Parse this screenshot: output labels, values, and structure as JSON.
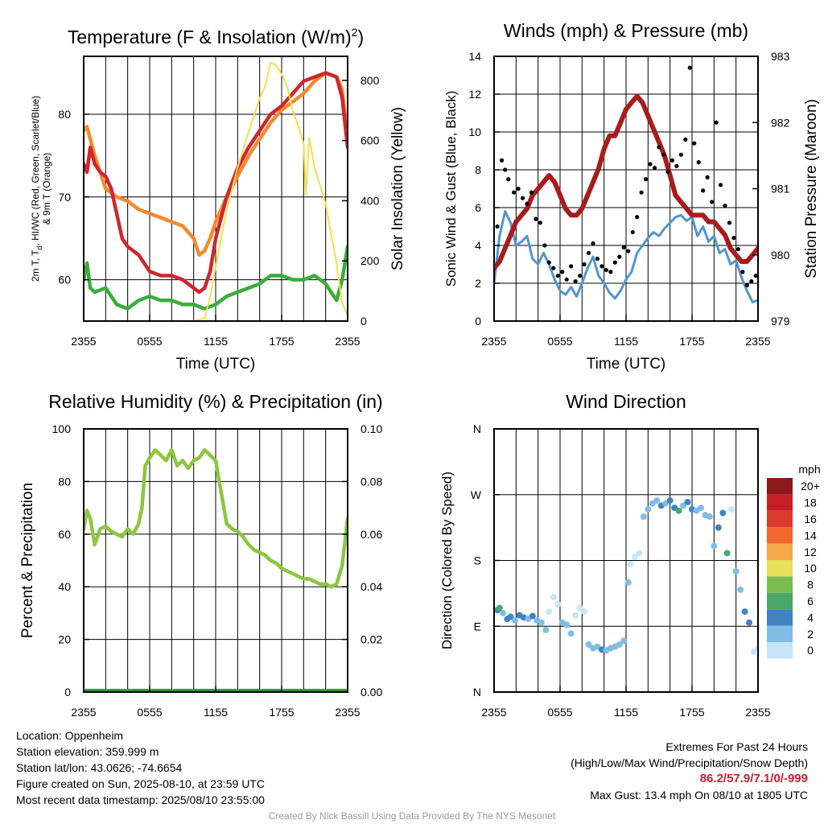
{
  "chart_data": [
    {
      "type": "line",
      "title": "Temperature (F) & Insolation (W/m²)",
      "xlabel": "Time (UTC)",
      "ylabel": "2m T, Td, HI/WC (Red, Green, Scarlet/Blue) & 9m T (Orange)",
      "ylabel_line1": "2m T, T",
      "ylabel_sub": "d",
      "ylabel_line1_rest": ", HI/WC (Red, Green, Scarlet/Blue)",
      "ylabel_line2": "& 9m T (Orange)",
      "y2label": "Solar Insolation (Yellow)",
      "x_ticks": [
        "2355",
        "0555",
        "1155",
        "1755",
        "2355"
      ],
      "x_hours": [
        0,
        6,
        12,
        18,
        24
      ],
      "ylim": [
        55,
        87
      ],
      "y_ticks": [
        60,
        70,
        80
      ],
      "y2lim": [
        0,
        880
      ],
      "y2_ticks": [
        0,
        200,
        400,
        600,
        800
      ],
      "grid": true,
      "series": [
        {
          "color": "#f28a2e",
          "x": [
            0,
            0.3,
            0.6,
            1,
            1.5,
            2,
            3,
            4,
            5,
            6,
            7,
            8,
            9,
            10,
            10.5,
            11,
            11.5,
            12,
            13,
            14,
            15,
            16,
            17,
            18,
            19,
            20,
            21,
            22,
            23,
            23.5,
            24
          ],
          "y": [
            78,
            78.5,
            77,
            75,
            73,
            71,
            70,
            69.5,
            68.5,
            68,
            67.5,
            67,
            66.5,
            65,
            63,
            63.5,
            65,
            67,
            70,
            72.5,
            75,
            77,
            79,
            80.5,
            81.5,
            82.5,
            84,
            85,
            84.5,
            83,
            77
          ]
        },
        {
          "color": "#d0262e",
          "x": [
            0,
            0.3,
            0.6,
            1,
            1.5,
            2,
            2.5,
            3,
            3.5,
            4,
            5,
            6,
            7,
            8,
            9,
            10,
            10.5,
            11,
            11.5,
            12,
            13,
            14,
            15,
            16,
            17,
            18,
            19,
            20,
            21,
            22,
            23,
            23.5,
            24
          ],
          "y": [
            74,
            73,
            76,
            74,
            73,
            72.5,
            71,
            68,
            65,
            64,
            63,
            61,
            60.5,
            60.5,
            60,
            59,
            58.5,
            59,
            61,
            65,
            70,
            73.5,
            76,
            78,
            80,
            81,
            82.5,
            84,
            84.5,
            85,
            84.5,
            82,
            76
          ]
        },
        {
          "color": "#3aad3a",
          "x": [
            0,
            0.3,
            0.6,
            1,
            2,
            3,
            4,
            5,
            6,
            7,
            8,
            9,
            10,
            11,
            12,
            13,
            14,
            15,
            16,
            17,
            18,
            19,
            20,
            21,
            22,
            23,
            23.5,
            24
          ],
          "y": [
            60,
            62,
            59,
            58.5,
            59,
            57,
            56.5,
            57.5,
            58,
            57.5,
            57.5,
            57,
            57,
            56.5,
            57,
            58,
            58.5,
            59,
            59.5,
            60.5,
            60.5,
            60,
            60,
            60.5,
            59.5,
            57.5,
            60,
            64
          ]
        },
        {
          "color": "#f2e050",
          "axis": "y2",
          "x": [
            0,
            1,
            2,
            3,
            4,
            5,
            6,
            7,
            8,
            9,
            10,
            11,
            11.5,
            12,
            13,
            14,
            15,
            16,
            16.5,
            17,
            17.5,
            18,
            18.5,
            19,
            19.5,
            20,
            20.2,
            20.5,
            21,
            22,
            23,
            23.5,
            24
          ],
          "y": [
            0,
            0,
            0,
            0,
            0,
            0,
            0,
            0,
            0,
            0,
            1,
            10,
            80,
            180,
            370,
            510,
            630,
            740,
            780,
            860,
            850,
            820,
            780,
            700,
            650,
            590,
            420,
            610,
            510,
            390,
            190,
            60,
            20
          ]
        }
      ]
    },
    {
      "type": "line",
      "title": "Winds (mph) & Pressure (mb)",
      "xlabel": "Time (UTC)",
      "ylabel": "Sonic Wind & Gust (Blue, Black)",
      "y2label": "Station Pressure (Maroon)",
      "x_ticks": [
        "2355",
        "0555",
        "1155",
        "1755",
        "2355"
      ],
      "x_hours": [
        0,
        6,
        12,
        18,
        24
      ],
      "ylim": [
        0,
        14
      ],
      "y_ticks": [
        0,
        2,
        4,
        6,
        8,
        10,
        12,
        14
      ],
      "y2lim": [
        979,
        983
      ],
      "y2_ticks": [
        979,
        980,
        981,
        982,
        983
      ],
      "grid": true,
      "series": [
        {
          "color": "#4f96d3",
          "x": [
            0,
            0.5,
            1,
            1.5,
            2,
            2.5,
            3,
            3.5,
            4,
            4.5,
            5,
            5.5,
            6,
            6.5,
            7,
            7.5,
            8,
            8.5,
            9,
            9.5,
            10,
            10.5,
            11,
            11.5,
            12,
            12.5,
            13,
            13.5,
            14,
            14.5,
            15,
            15.5,
            16,
            16.5,
            17,
            17.5,
            18,
            18.5,
            19,
            19.5,
            20,
            20.5,
            21,
            21.5,
            22,
            22.5,
            23,
            23.5,
            24
          ],
          "y": [
            2,
            4.5,
            5.8,
            5.2,
            4,
            4.2,
            4.5,
            3.3,
            3,
            3.6,
            3,
            2.2,
            1.6,
            1.4,
            1.8,
            1.3,
            2,
            2.8,
            3.4,
            2.4,
            2,
            1.5,
            1.2,
            1.6,
            2.2,
            2.6,
            3.6,
            4,
            4.4,
            4.7,
            4.5,
            4.9,
            5.2,
            5.5,
            5.6,
            5.3,
            5.5,
            4.5,
            5,
            4.2,
            4.5,
            3.6,
            3.8,
            3,
            3.2,
            2.3,
            1.6,
            1,
            1.1
          ]
        },
        {
          "color": "#a81c1c",
          "axis": "y2",
          "x": [
            0,
            0.5,
            1,
            1.5,
            2,
            2.5,
            3,
            3.5,
            4,
            4.5,
            5,
            5.5,
            6,
            6.5,
            7,
            7.5,
            8,
            8.5,
            9,
            9.5,
            10,
            10.5,
            11,
            11.5,
            12,
            12.5,
            13,
            13.5,
            14,
            14.5,
            15,
            15.5,
            16,
            16.5,
            17,
            17.5,
            18,
            18.5,
            19,
            19.5,
            20,
            20.5,
            21,
            21.5,
            22,
            22.5,
            23,
            23.5,
            24
          ],
          "y": [
            979.8,
            979.9,
            980.1,
            980.3,
            980.5,
            980.6,
            980.7,
            980.9,
            981,
            981.1,
            981.2,
            981.1,
            980.9,
            980.7,
            980.6,
            980.6,
            980.7,
            980.9,
            981.1,
            981.3,
            981.6,
            981.8,
            981.8,
            982,
            982.2,
            982.3,
            982.4,
            982.3,
            982.1,
            981.9,
            981.7,
            981.5,
            981.2,
            980.9,
            980.8,
            980.7,
            980.6,
            980.6,
            980.6,
            980.5,
            980.5,
            980.4,
            980.3,
            980.1,
            980,
            979.9,
            979.9,
            980,
            980.1
          ]
        },
        {
          "color": "#000000",
          "type": "scatter",
          "x": [
            0.3,
            0.7,
            1,
            1.3,
            1.8,
            2.2,
            2.6,
            3,
            3.4,
            3.8,
            4.2,
            4.6,
            5,
            5.4,
            5.8,
            6.2,
            6.6,
            7,
            7.4,
            7.8,
            8.2,
            8.6,
            9,
            9.4,
            9.8,
            10.2,
            10.6,
            11,
            11.4,
            11.8,
            12.2,
            12.6,
            13,
            13.4,
            13.8,
            14.2,
            14.6,
            15,
            15.4,
            15.8,
            16.2,
            16.6,
            17,
            17.4,
            17.8,
            18.2,
            18.6,
            19,
            19.4,
            19.8,
            20.2,
            20.6,
            21,
            21.4,
            21.8,
            22.2,
            22.6,
            23,
            23.4,
            23.8
          ],
          "y": [
            5,
            8.5,
            8,
            7.5,
            6.8,
            7,
            6.5,
            6.2,
            6.8,
            5.4,
            5.2,
            4,
            3.1,
            2.8,
            2.4,
            2.6,
            2.2,
            2.9,
            2.1,
            2.4,
            3,
            3.6,
            4.1,
            3.3,
            2.9,
            2.7,
            2.6,
            3.1,
            3.4,
            3.9,
            3.7,
            4.7,
            5.5,
            6.8,
            7.5,
            8.3,
            8.1,
            9.2,
            8.8,
            7.9,
            8.5,
            8.2,
            8.8,
            9.6,
            13.4,
            9.4,
            8.4,
            6.9,
            7.6,
            6.3,
            10.5,
            7.2,
            6.1,
            5.2,
            4.4,
            3.8,
            2.6,
            1.9,
            2.1,
            2.4
          ]
        }
      ]
    },
    {
      "type": "line",
      "title": "Relative Humidity (%) & Precipitation (in)",
      "ylabel": "Percent & Precipitation",
      "x_ticks": [
        "2355",
        "0555",
        "1155",
        "1755",
        "2355"
      ],
      "x_hours": [
        0,
        6,
        12,
        18,
        24
      ],
      "ylim": [
        0,
        100
      ],
      "y_ticks": [
        0,
        20,
        40,
        60,
        80,
        100
      ],
      "y2lim": [
        0,
        0.1
      ],
      "y2_ticks": [
        "0.00",
        "0.02",
        "0.04",
        "0.06",
        "0.08",
        "0.10"
      ],
      "grid": true,
      "series": [
        {
          "color": "#8cc63f",
          "x": [
            0,
            0.3,
            0.6,
            1,
            1.5,
            2,
            2.5,
            3,
            3.5,
            4,
            4.5,
            5,
            5.3,
            5.6,
            6,
            6.5,
            7,
            7.5,
            8,
            8.5,
            9,
            9.5,
            10,
            10.5,
            11,
            11.5,
            12,
            12.5,
            13,
            13.5,
            14,
            14.5,
            15,
            15.5,
            16,
            16.5,
            17,
            17.5,
            18,
            18.5,
            19,
            19.5,
            20,
            20.5,
            21,
            21.5,
            22,
            22.5,
            23,
            23.5,
            24
          ],
          "y": [
            62,
            69,
            66,
            56,
            62,
            63,
            61,
            60,
            59,
            62,
            60,
            64,
            70,
            86,
            89,
            92,
            90,
            88,
            92,
            86,
            88,
            85,
            88,
            89,
            92,
            90,
            88,
            76,
            64,
            62,
            61,
            59,
            56,
            54,
            53,
            52,
            50,
            49,
            47,
            46,
            45,
            44,
            43,
            43,
            42,
            41,
            41,
            40,
            41,
            48,
            66
          ]
        },
        {
          "color": "#2f9e3f",
          "x": [
            0,
            24
          ],
          "y": [
            0,
            0
          ]
        }
      ]
    },
    {
      "type": "scatter",
      "title": "Wind Direction",
      "ylabel": "Direction (Colored By Speed)",
      "x_ticks": [
        "2355",
        "0555",
        "1155",
        "1755",
        "2355"
      ],
      "x_hours": [
        0,
        6,
        12,
        18,
        24
      ],
      "ylim": [
        0,
        360
      ],
      "y_ticks": [
        "N",
        "E",
        "S",
        "W",
        "N"
      ],
      "y_tick_values": [
        0,
        90,
        180,
        270,
        360
      ],
      "grid": true,
      "colorbar": {
        "title": "mph",
        "labels": [
          "0",
          "2",
          "4",
          "6",
          "8",
          "10",
          "12",
          "14",
          "16",
          "18",
          "20+"
        ],
        "colors": [
          "#c6e6f7",
          "#80bde6",
          "#3f84c0",
          "#4aa66a",
          "#79bd4f",
          "#e6e05a",
          "#f7a84a",
          "#f0682e",
          "#dd3a2e",
          "#c41f26",
          "#8c1a1a"
        ]
      },
      "points": {
        "x": [
          0.3,
          0.5,
          0.8,
          1.2,
          1.5,
          1.9,
          2.3,
          2.7,
          3.1,
          3.5,
          3.9,
          4.3,
          4.7,
          5,
          5.4,
          5.8,
          6.2,
          6.6,
          7,
          7.4,
          7.8,
          8.2,
          8.6,
          9,
          9.4,
          9.8,
          10.2,
          10.6,
          11,
          11.4,
          11.8,
          12.2,
          12.4,
          12.8,
          13.2,
          13.6,
          14,
          14.4,
          14.8,
          15.2,
          15.6,
          16,
          16.4,
          16.8,
          17.2,
          17.6,
          18,
          18.4,
          18.8,
          19.2,
          19.6,
          20,
          20.4,
          20.8,
          21.2,
          21.6,
          22,
          22.4,
          22.8,
          23.2,
          23.6,
          24
        ],
        "y": [
          112,
          115,
          108,
          100,
          103,
          98,
          105,
          102,
          100,
          104,
          98,
          95,
          85,
          110,
          130,
          120,
          95,
          92,
          80,
          105,
          115,
          110,
          65,
          60,
          62,
          58,
          57,
          60,
          62,
          65,
          70,
          150,
          175,
          185,
          190,
          240,
          250,
          258,
          262,
          255,
          258,
          262,
          252,
          248,
          255,
          260,
          250,
          248,
          252,
          242,
          240,
          200,
          225,
          245,
          190,
          250,
          165,
          140,
          110,
          95,
          55,
          60
        ],
        "speed": [
          5,
          7,
          3,
          4,
          4,
          3,
          5,
          4,
          3,
          4,
          3,
          3,
          2,
          1,
          1,
          1,
          3,
          3,
          2,
          1,
          1,
          1,
          3,
          3,
          3,
          4,
          3,
          3,
          2,
          3,
          2,
          2,
          1,
          1,
          1,
          2,
          2,
          3,
          3,
          4,
          3,
          4,
          4,
          7,
          3,
          4,
          4,
          3,
          2,
          2,
          3,
          3,
          4,
          4,
          6,
          1,
          3,
          2,
          4,
          4,
          1,
          1
        ]
      }
    }
  ],
  "info": {
    "location": "Location: Oppenheim",
    "elevation": "Station elevation: 359.999 m",
    "latlon": "Station lat/lon: 43.0626; -74.6654",
    "created": "Figure created on Sun, 2025-08-10, at 23:59 UTC",
    "recent": "Most recent data timestamp: 2025/08/10 23:55:00"
  },
  "extremes": {
    "title": "Extremes For Past 24 Hours",
    "subtitle": "(High/Low/Max Wind/Precipitation/Snow Depth)",
    "values": "86.2/57.9/7.1/0/-999",
    "gust": "Max Gust: 13.4 mph On 08/10 at 1805 UTC"
  },
  "credit": "Created By Nick Bassill Using Data Provided By The NYS Mesonet"
}
